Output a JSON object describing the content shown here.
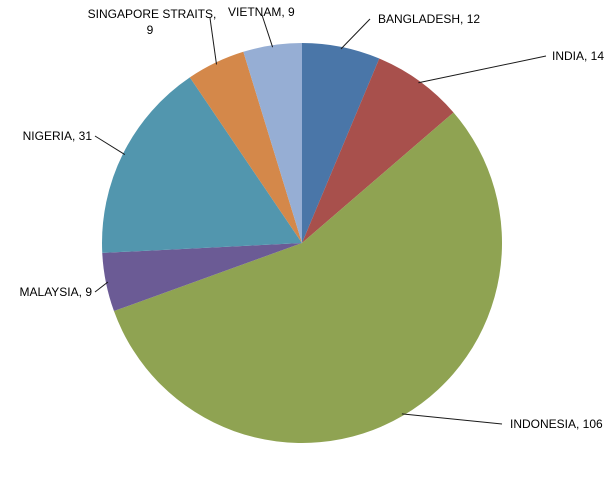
{
  "chart_data": {
    "type": "pie",
    "title": "",
    "categories": [
      "BANGLADESH",
      "INDIA",
      "INDONESIA",
      "MALAYSIA",
      "NIGERIA",
      "SINGAPORE STRAITS",
      "VIETNAM"
    ],
    "values": [
      12,
      14,
      106,
      9,
      31,
      9,
      9
    ],
    "labels": [
      "BANGLADESH, 12",
      "INDIA, 14",
      "INDONESIA, 106",
      "MALAYSIA, 9",
      "NIGERIA, 31",
      "SINGAPORE STRAITS, 9",
      "VIETNAM, 9"
    ],
    "colors": [
      "#4A76A8",
      "#A8504C",
      "#8FA352",
      "#6B5B95",
      "#5296AE",
      "#D4884A",
      "#96AED4"
    ],
    "legend": "none"
  }
}
